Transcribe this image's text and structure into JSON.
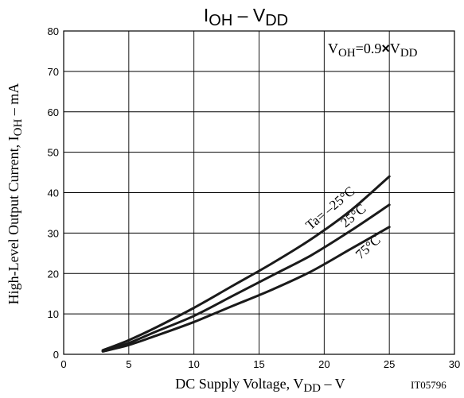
{
  "chart_data": {
    "type": "line",
    "title": {
      "main": "I",
      "sub": "OH",
      "sep": " – ",
      "main2": "V",
      "sub2": "DD"
    },
    "condition": {
      "pre": "V",
      "sub": "OH",
      "text": "=0.9",
      "mult": "×",
      "pre2": "V",
      "sub2": "DD"
    },
    "xlabel": {
      "text": "DC Supply Voltage, V",
      "sub": "DD",
      "unit": " – V"
    },
    "ylabel": {
      "text": "High-Level Output Current, I",
      "sub": "OH",
      "unit": " – mA"
    },
    "xlim": [
      0,
      30
    ],
    "ylim": [
      0,
      80
    ],
    "xticks": [
      0,
      5,
      10,
      15,
      20,
      25,
      30
    ],
    "yticks": [
      0,
      10,
      20,
      30,
      40,
      50,
      60,
      70,
      80
    ],
    "grid": true,
    "figure_id": "IT05796",
    "series": [
      {
        "name": "Ta= –25°C",
        "x": [
          3,
          5,
          7,
          10,
          13,
          16,
          19,
          22,
          25
        ],
        "y": [
          1,
          3.5,
          6.5,
          11.5,
          17,
          22.5,
          28.5,
          35.5,
          44
        ]
      },
      {
        "name": "25°C",
        "x": [
          3,
          5,
          7,
          10,
          13,
          16,
          19,
          22,
          25
        ],
        "y": [
          0.8,
          2.8,
          5.5,
          9.5,
          14.5,
          19.5,
          24.5,
          30.5,
          37
        ]
      },
      {
        "name": "75°C",
        "x": [
          3,
          5,
          7,
          10,
          13,
          16,
          19,
          22,
          25
        ],
        "y": [
          0.7,
          2.3,
          4.5,
          8,
          12,
          16,
          20.5,
          26,
          31.5
        ]
      }
    ]
  }
}
